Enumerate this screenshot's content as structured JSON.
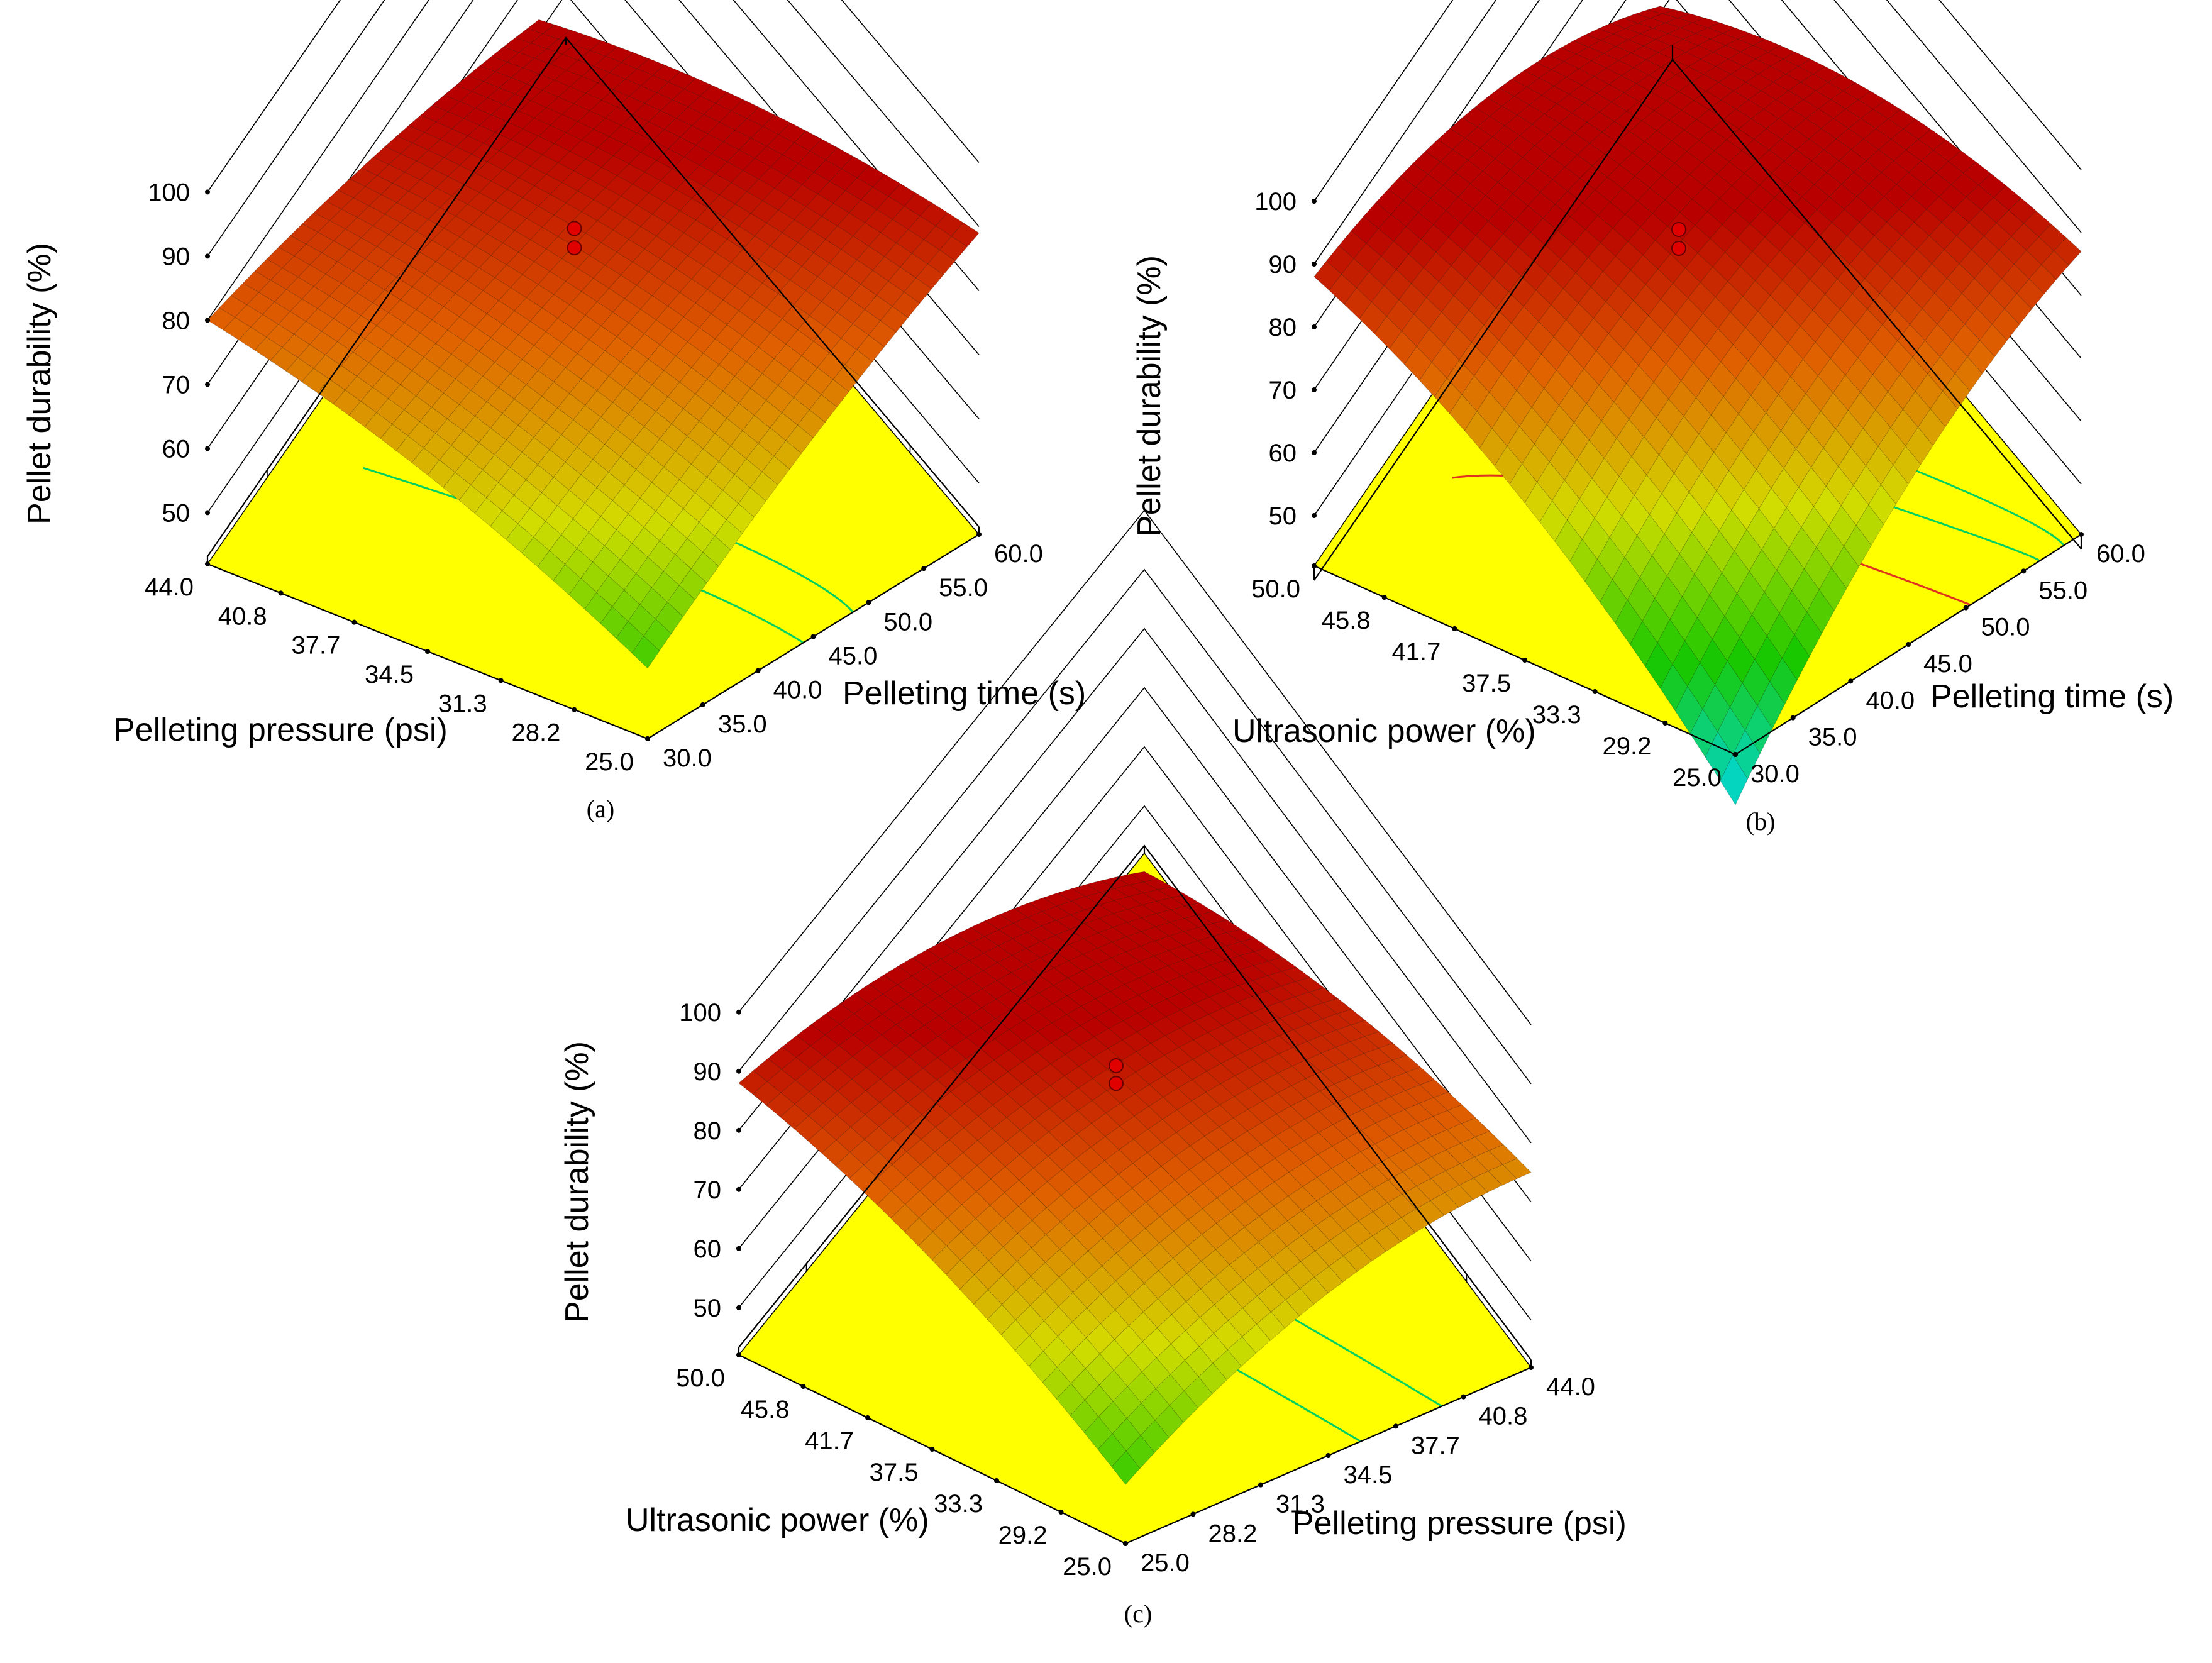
{
  "figure": {
    "colors": {
      "floor": "#ffff00",
      "surface_low": "#00d8e8",
      "surface_mid_low": "#19c800",
      "surface_mid": "#d4dc00",
      "surface_mid_high": "#e06000",
      "surface_high": "#b80000",
      "design_point": "#e00000",
      "contour_low": "#00d060",
      "contour_high": "#e03020"
    }
  },
  "chart_data": [
    {
      "type": "surface3d",
      "panel": "a",
      "caption": "(a)",
      "zlabel": "Pellet durability (%)",
      "zlim": [
        42,
        100
      ],
      "zticks": [
        50,
        60,
        70,
        80,
        90,
        100
      ],
      "ztick_labels": [
        "50",
        "60",
        "70",
        "80",
        "90",
        "100"
      ],
      "left_axis": {
        "label": "Pelleting pressure (psi)",
        "range": [
          25.0,
          44.0
        ],
        "tick_labels": [
          "44.0",
          "40.8",
          "37.7",
          "34.5",
          "31.3",
          "28.2",
          "25.0"
        ]
      },
      "right_axis": {
        "label": "Pelleting time (s)",
        "range": [
          30.0,
          60.0
        ],
        "tick_labels": [
          "30.0",
          "35.0",
          "40.0",
          "45.0",
          "50.0",
          "55.0",
          "60.0"
        ]
      },
      "corner_values": {
        "front": 53,
        "left_far": 80,
        "right_far": 89,
        "back": 95
      },
      "curvature": [
        2,
        3
      ],
      "design_point_values": [
        92,
        89
      ],
      "contours": [
        [
          0.47,
          0.32,
          0.47,
          "low"
        ],
        [
          0.62,
          0.2,
          0.68,
          "low"
        ]
      ]
    },
    {
      "type": "surface3d",
      "panel": "b",
      "caption": "(b)",
      "zlabel": "Pellet durability (%)",
      "zlim": [
        42,
        100
      ],
      "zticks": [
        50,
        60,
        70,
        80,
        90,
        100
      ],
      "ztick_labels": [
        "50",
        "60",
        "70",
        "80",
        "90",
        "100"
      ],
      "left_axis": {
        "label": "Ultrasonic power (%)",
        "range": [
          25.0,
          50.0
        ],
        "tick_labels": [
          "50.0",
          "45.8",
          "41.7",
          "37.5",
          "33.3",
          "29.2",
          "25.0"
        ]
      },
      "right_axis": {
        "label": "Pelleting time (s)",
        "range": [
          30.0,
          60.0
        ],
        "tick_labels": [
          "30.0",
          "35.0",
          "40.0",
          "45.0",
          "50.0",
          "55.0",
          "60.0"
        ]
      },
      "corner_values": {
        "front": 34,
        "left_far": 88,
        "right_far": 87,
        "back": 96
      },
      "curvature": [
        7,
        6
      ],
      "design_point_values": [
        93,
        90
      ],
      "contours": [
        [
          0.68,
          0.85,
          0.4,
          "high"
        ],
        [
          0.88,
          0.05,
          0.75,
          "low"
        ],
        [
          0.95,
          0.12,
          0.92,
          "low"
        ]
      ]
    },
    {
      "type": "surface3d",
      "panel": "c",
      "caption": "(c)",
      "zlabel": "Pellet durability (%)",
      "zlim": [
        42,
        100
      ],
      "zticks": [
        50,
        60,
        70,
        80,
        90,
        100
      ],
      "ztick_labels": [
        "50",
        "60",
        "70",
        "80",
        "90",
        "100"
      ],
      "left_axis": {
        "label": "Ultrasonic power (%)",
        "range": [
          25.0,
          50.0
        ],
        "tick_labels": [
          "50.0",
          "45.8",
          "41.7",
          "37.5",
          "33.3",
          "29.2",
          "25.0"
        ]
      },
      "right_axis": {
        "label": "Pelleting pressure (psi)",
        "range": [
          25.0,
          44.0
        ],
        "tick_labels": [
          "25.0",
          "28.2",
          "31.3",
          "34.5",
          "37.7",
          "40.8",
          "44.0"
        ]
      },
      "corner_values": {
        "front": 52,
        "left_far": 88,
        "right_far": 75,
        "back": 94
      },
      "curvature": [
        6,
        4
      ],
      "design_point_values": [
        92,
        89
      ],
      "contours": [
        [
          0.58,
          0.95,
          0.6,
          "low"
        ],
        [
          0.78,
          0.95,
          0.82,
          "low"
        ]
      ]
    }
  ]
}
